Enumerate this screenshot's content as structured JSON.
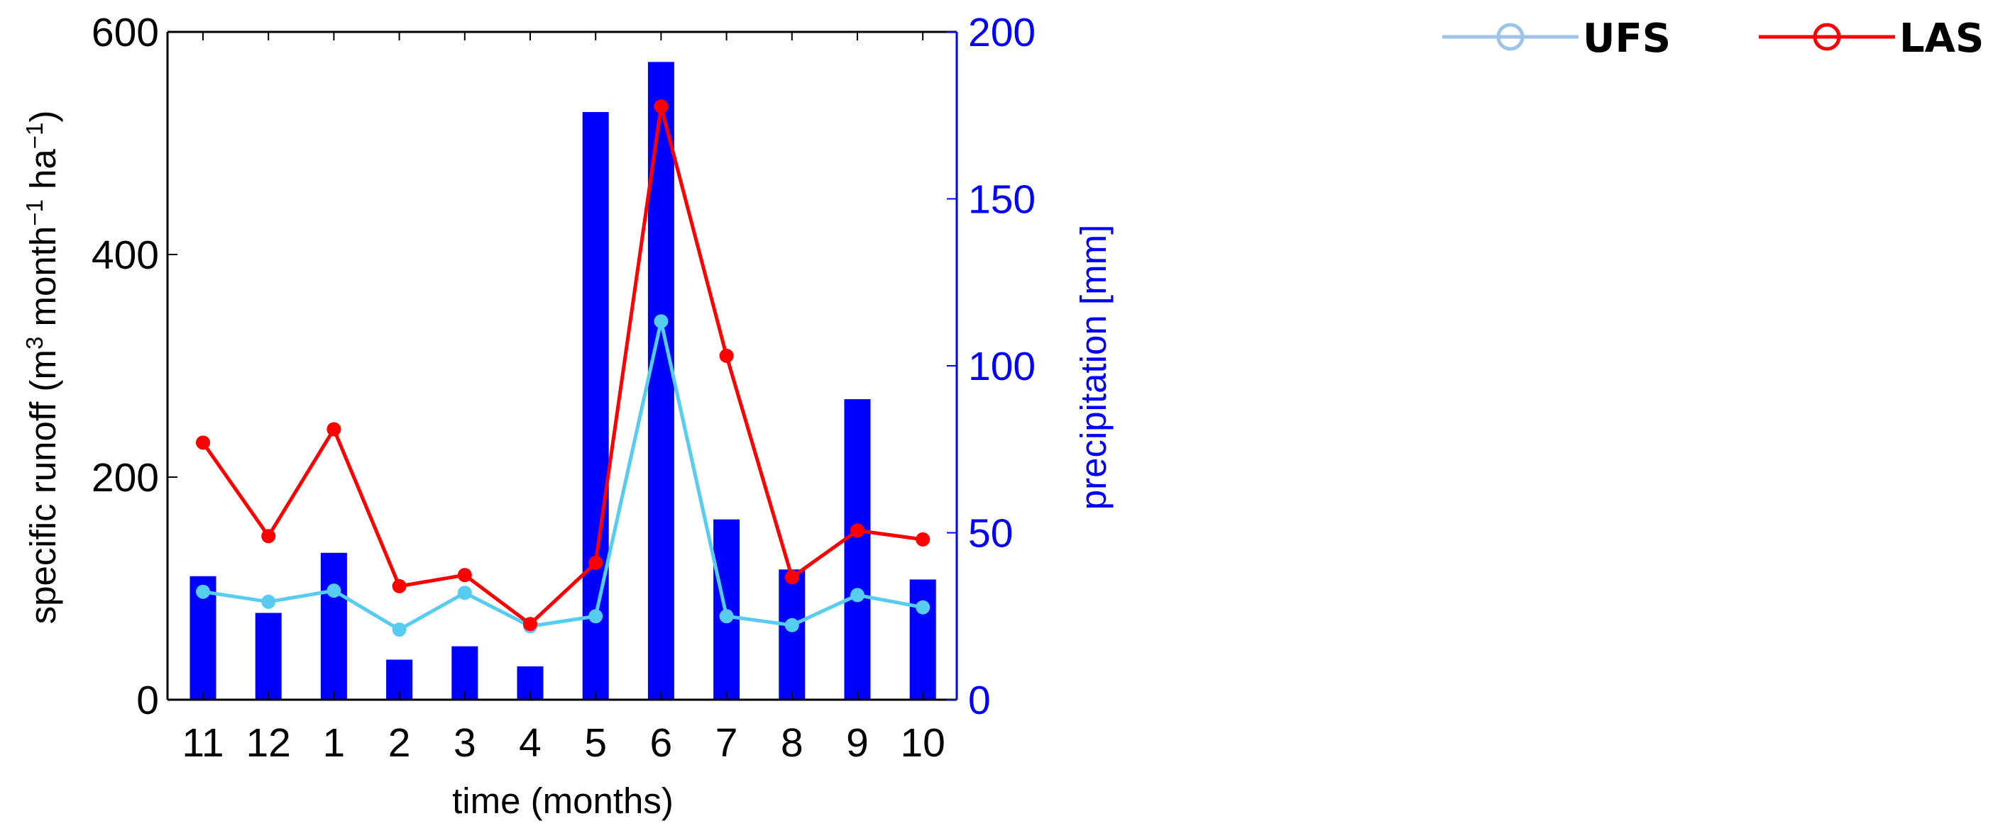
{
  "chart_data": {
    "type": "bar+line",
    "xlabel": "time (months)",
    "ylabel_left_parts": [
      "specific runoff (m",
      "3",
      " month",
      "−1",
      " ha",
      "−1",
      ")"
    ],
    "ylabel_right": "precipitation [mm]",
    "categories": [
      "11",
      "12",
      "1",
      "2",
      "3",
      "4",
      "5",
      "6",
      "7",
      "8",
      "9",
      "10"
    ],
    "ylim_left": [
      0,
      600
    ],
    "yticks_left": [
      0,
      200,
      400,
      600
    ],
    "ylim_right": [
      0,
      200
    ],
    "yticks_right": [
      0,
      50,
      100,
      150,
      200
    ],
    "bars": {
      "name": "precipitation",
      "axis": "right",
      "color": "#0000ff",
      "values": [
        37,
        26,
        44,
        12,
        16,
        10,
        176,
        191,
        54,
        39,
        90,
        36
      ]
    },
    "series": [
      {
        "name": "UFS",
        "axis": "left",
        "color": "#55ccf0",
        "legend_color": "#9dc3e6",
        "values": [
          97,
          88,
          98,
          63,
          96,
          66,
          75,
          340,
          75,
          67,
          94,
          83
        ]
      },
      {
        "name": "LAS",
        "axis": "left",
        "color": "#ff0000",
        "legend_color": "#ff0000",
        "values": [
          231,
          147,
          243,
          102,
          112,
          68,
          123,
          533,
          309,
          110,
          152,
          144
        ]
      }
    ],
    "legend_position": "top-right"
  }
}
